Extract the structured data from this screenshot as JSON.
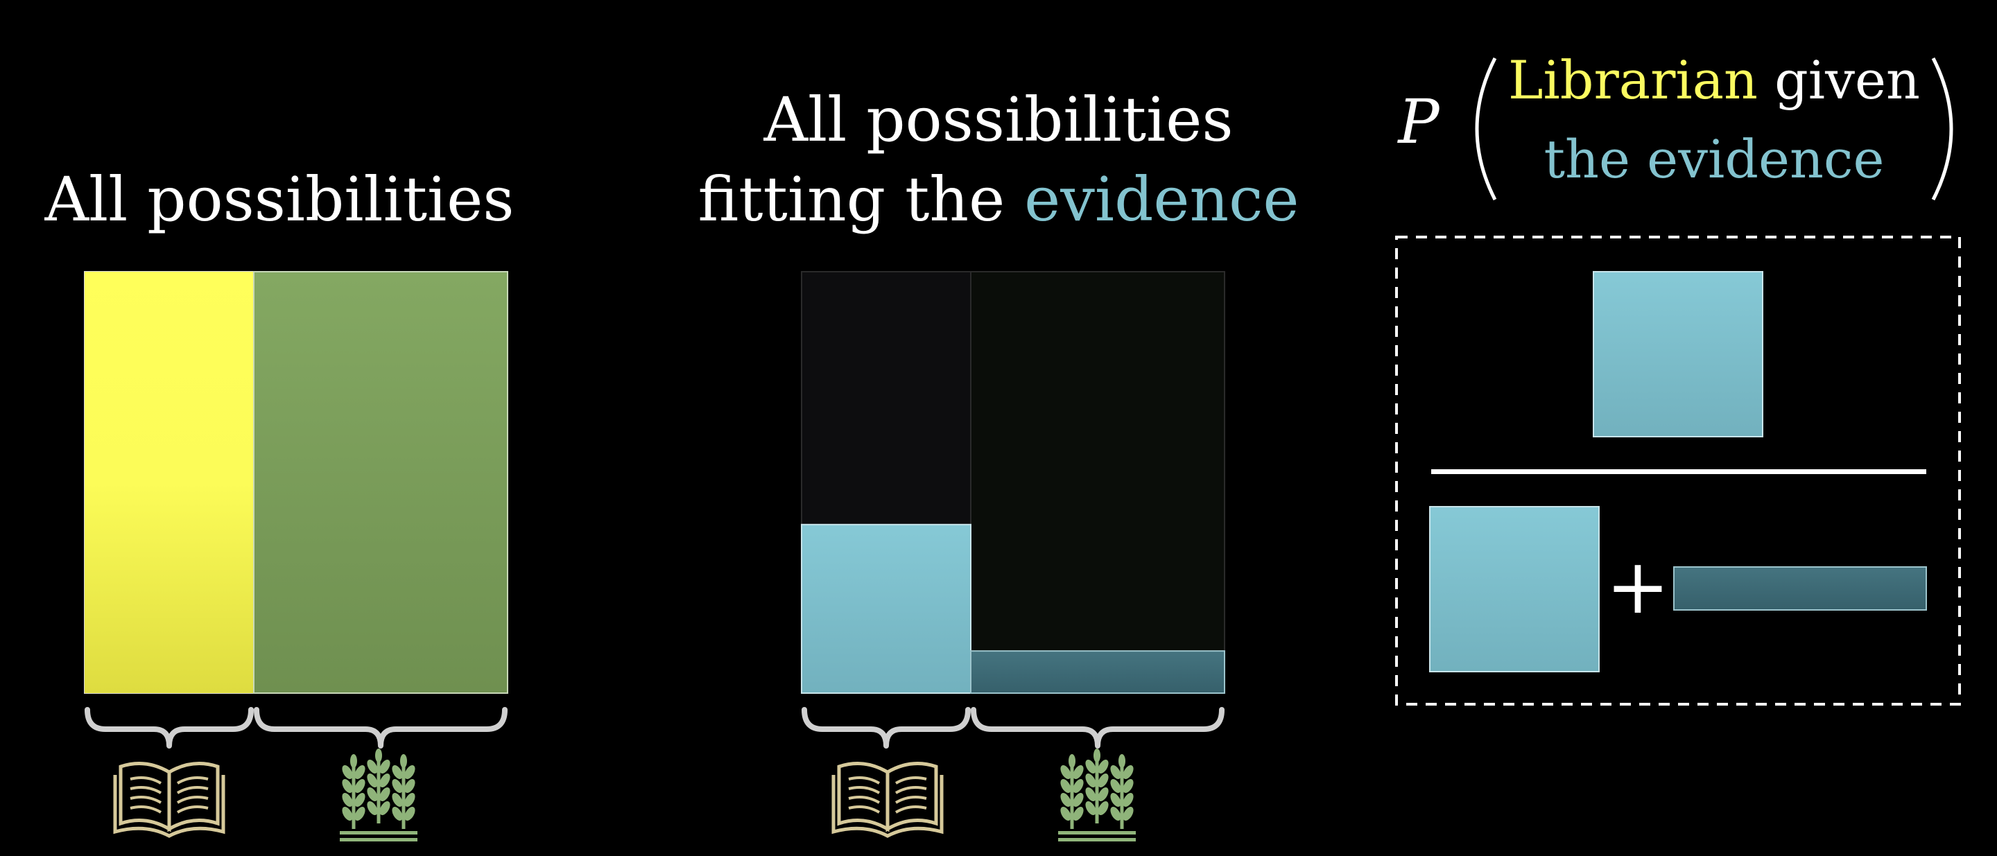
{
  "colors": {
    "background": "#000000",
    "text": "#ffffff",
    "librarian_yellow": "#fcfc60",
    "evidence_blue": "#83c3cf",
    "farmer_green": "#7ea35a",
    "farmer_evidence_dark": "#3e6a75",
    "icon_gold": "#d6c99a",
    "icon_green": "#8fb47a",
    "brace": "#d0d0d0"
  },
  "panel_all": {
    "title": "All possibilities",
    "librarian_share": 0.4,
    "icons": [
      "book-icon",
      "wheat-icon"
    ]
  },
  "panel_evidence": {
    "title_line1": "All possibilities",
    "title_line2_prefix": "fitting the ",
    "title_line2_highlight": "evidence",
    "librarian_evidence_fraction": 0.4,
    "farmer_evidence_fraction": 0.1,
    "icons": [
      "book-icon",
      "wheat-icon"
    ]
  },
  "formula": {
    "p_symbol": "P",
    "librarian_word": "Librarian",
    "given_word": " given",
    "evidence_phrase": "the evidence",
    "plus": "+"
  }
}
